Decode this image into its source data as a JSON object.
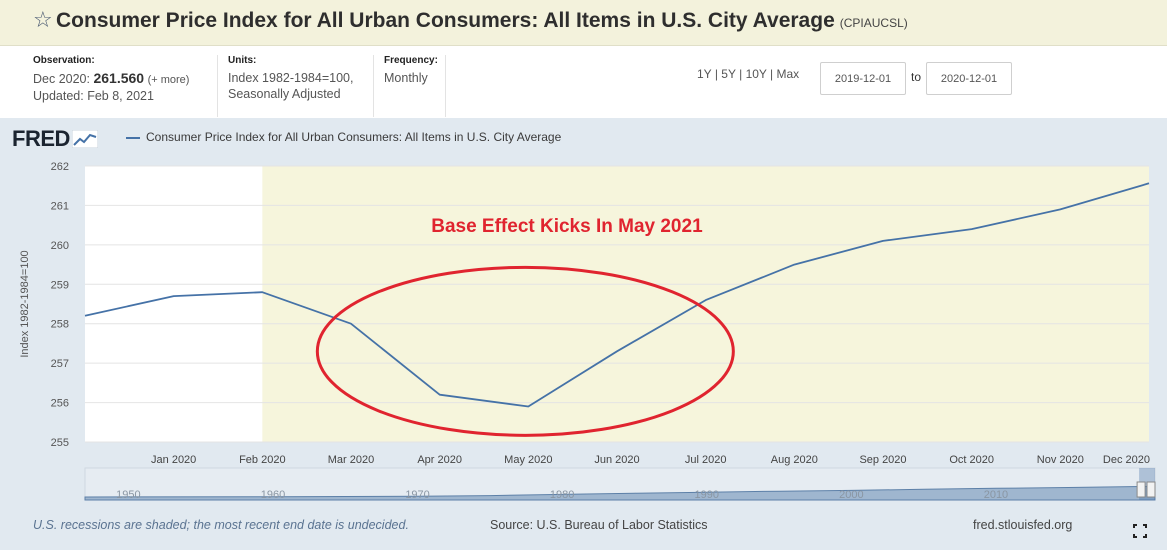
{
  "header": {
    "title": "Consumer Price Index for All Urban Consumers: All Items in U.S. City Average",
    "series_id": "(CPIAUCSL)",
    "star_icon": "star-outline-icon"
  },
  "meta": {
    "observation_label": "Observation:",
    "observation_date": "Dec 2020:",
    "observation_value": "261.560",
    "more_link": "(+ more)",
    "updated": "Updated: Feb 8, 2021",
    "units_label": "Units:",
    "units_line1": "Index 1982-1984=100,",
    "units_line2": "Seasonally Adjusted",
    "frequency_label": "Frequency:",
    "frequency_value": "Monthly"
  },
  "range": {
    "links": [
      "1Y",
      "5Y",
      "10Y",
      "Max"
    ],
    "separator": "|",
    "start_date": "2019-12-01",
    "end_date": "2020-12-01",
    "to_label": "to"
  },
  "legend": {
    "logo": "FRED",
    "series_label": "Consumer Price Index for All Urban Consumers: All Items in U.S. City Average"
  },
  "footer": {
    "recession_note": "U.S. recessions are shaded; the most recent end date is undecided.",
    "source": "Source: U.S. Bureau of Labor Statistics",
    "site": "fred.stlouisfed.org"
  },
  "colors": {
    "line": "#4572a7",
    "recession_shade": "#f6f5dc",
    "annotation": "#e0242f",
    "panel": "#e1e9f0"
  },
  "chart_data": {
    "type": "line",
    "ylabel": "Index 1982-1984=100",
    "ylim": [
      255,
      262
    ],
    "yticks": [
      255,
      256,
      257,
      258,
      259,
      260,
      261,
      262
    ],
    "x": [
      "Dec 2019",
      "Jan 2020",
      "Feb 2020",
      "Mar 2020",
      "Apr 2020",
      "May 2020",
      "Jun 2020",
      "Jul 2020",
      "Aug 2020",
      "Sep 2020",
      "Oct 2020",
      "Nov 2020",
      "Dec 2020"
    ],
    "xtick_labels": [
      "",
      "Jan 2020",
      "Feb 2020",
      "Mar 2020",
      "Apr 2020",
      "May 2020",
      "Jun 2020",
      "Jul 2020",
      "Aug 2020",
      "Sep 2020",
      "Oct 2020",
      "Nov 2020",
      "Dec 2020"
    ],
    "series": [
      {
        "name": "Consumer Price Index for All Urban Consumers: All Items in U.S. City Average",
        "values": [
          258.2,
          258.7,
          258.8,
          258.0,
          256.2,
          255.9,
          257.3,
          258.6,
          259.5,
          260.1,
          260.4,
          260.9,
          261.56
        ]
      }
    ],
    "recession": {
      "start": "Feb 2020",
      "end": "Dec 2020"
    },
    "annotation": {
      "text": "Base Effect Kicks In May 2021"
    },
    "navigator": {
      "ticks": [
        "1950",
        "1960",
        "1970",
        "1980",
        "1990",
        "2000",
        "2010"
      ],
      "start_year": 1947,
      "end_year": 2021,
      "series": [
        {
          "year": 1947,
          "value": 22
        },
        {
          "year": 1960,
          "value": 30
        },
        {
          "year": 1970,
          "value": 39
        },
        {
          "year": 1975,
          "value": 54
        },
        {
          "year": 1980,
          "value": 82
        },
        {
          "year": 1985,
          "value": 108
        },
        {
          "year": 1990,
          "value": 131
        },
        {
          "year": 1995,
          "value": 152
        },
        {
          "year": 2000,
          "value": 172
        },
        {
          "year": 2005,
          "value": 195
        },
        {
          "year": 2010,
          "value": 218
        },
        {
          "year": 2015,
          "value": 237
        },
        {
          "year": 2020,
          "value": 258
        }
      ]
    }
  }
}
